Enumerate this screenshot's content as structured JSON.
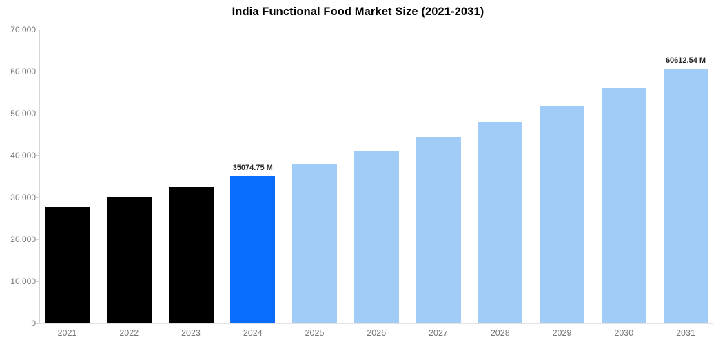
{
  "page": {
    "background": "#ffffff"
  },
  "chart_data": {
    "type": "bar",
    "title": "India Functional Food Market Size (2021-2031)",
    "categories": [
      "2021",
      "2022",
      "2023",
      "2024",
      "2025",
      "2026",
      "2027",
      "2028",
      "2029",
      "2030",
      "2031"
    ],
    "values": [
      27700,
      29950,
      32400,
      35074.75,
      37925,
      41010,
      44345,
      47950,
      51850,
      56060,
      60612.54
    ],
    "unit": "M",
    "bar_colors": [
      "#000000",
      "#000000",
      "#000000",
      "#086cff",
      "#a2ccf8",
      "#a2ccf8",
      "#a2ccf8",
      "#a2ccf8",
      "#a2ccf8",
      "#a2ccf8",
      "#a2ccf8"
    ],
    "series_roles": {
      "historical_years": [
        "2021",
        "2022",
        "2023"
      ],
      "highlight_year": "2024",
      "forecast_years": [
        "2025",
        "2026",
        "2027",
        "2028",
        "2029",
        "2030",
        "2031"
      ]
    },
    "annotations": [
      {
        "category": "2024",
        "text": "35074.75 M"
      },
      {
        "category": "2031",
        "text": "60612.54 M"
      }
    ],
    "xlabel": "",
    "ylabel": "",
    "ylim": [
      0,
      70000
    ],
    "ytick_interval": 10000,
    "yticks": [
      0,
      10000,
      20000,
      30000,
      40000,
      50000,
      60000,
      70000
    ],
    "ytick_labels": [
      "0",
      "10,000",
      "20,000",
      "30,000",
      "40,000",
      "50,000",
      "60,000",
      "70,000"
    ],
    "grid": false,
    "legend": false,
    "colors": {
      "historical_bar": "#000000",
      "highlight_bar": "#086cff",
      "forecast_bar": "#a2ccf8",
      "axis_line": "#d6d6d6",
      "baseline": "#e3e3e3",
      "tick_label": "#757575",
      "annotation_text": "#262626",
      "title_text": "#000000"
    }
  }
}
